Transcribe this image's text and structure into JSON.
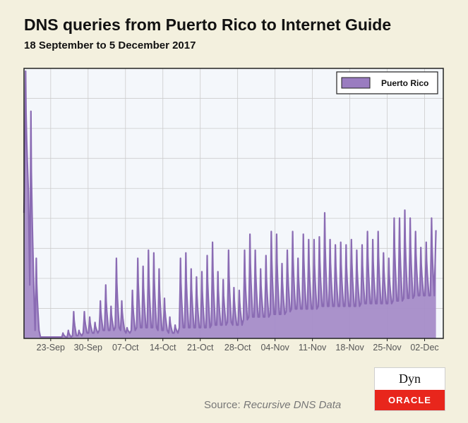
{
  "header": {
    "title": "DNS queries from Puerto Rico to Internet Guide",
    "subtitle": "18 September to 5 December 2017"
  },
  "footer": {
    "source_label": "Source:",
    "source_name": "Recursive DNS Data"
  },
  "logo": {
    "top": "Dyn",
    "bottom": "ORACLE"
  },
  "colors": {
    "series_line": "#8a6bb3",
    "series_fill": "#a58cc8",
    "plot_background": "#f4f7fb",
    "page_background": "#f3f0de",
    "grid": "#cccccc"
  },
  "chart_data": {
    "type": "area",
    "title": "DNS queries from Puerto Rico to Internet Guide",
    "subtitle": "18 September to 5 December 2017",
    "xlabel": "",
    "ylabel": "",
    "x_tick_labels": [
      "23-Sep",
      "30-Sep",
      "07-Oct",
      "14-Oct",
      "21-Oct",
      "28-Oct",
      "04-Nov",
      "11-Nov",
      "18-Nov",
      "25-Nov",
      "02-Dec"
    ],
    "x_tick_day_index": [
      5,
      12,
      19,
      26,
      33,
      40,
      47,
      54,
      61,
      68,
      75
    ],
    "xlim_days": [
      0,
      78.5
    ],
    "ylim_relative": [
      0,
      100
    ],
    "y_tick_labels_shown": false,
    "grid": true,
    "legend_position": "top-right",
    "series": [
      {
        "name": "Puerto Rico",
        "daily_peak_relative": [
          100,
          85,
          30,
          0.5,
          0.5,
          0.5,
          0.5,
          2,
          3,
          10,
          3,
          10,
          8,
          6,
          14,
          20,
          12,
          30,
          14,
          4,
          18,
          30,
          27,
          33,
          32,
          26,
          15,
          8,
          5,
          30,
          32,
          26,
          23,
          25,
          31,
          36,
          25,
          22,
          33,
          19,
          18,
          33,
          39,
          33,
          26,
          31,
          40,
          39,
          28,
          33,
          40,
          30,
          39,
          37,
          37,
          38,
          47,
          37,
          35,
          36,
          35,
          37,
          33,
          35,
          40,
          37,
          40,
          32,
          30,
          45,
          45,
          48,
          45,
          40,
          34,
          36,
          45
        ],
        "daily_trough_relative": [
          55,
          20,
          3,
          0.5,
          0.5,
          0.5,
          0.5,
          0.5,
          0.5,
          1,
          1,
          2,
          2,
          2,
          3,
          3,
          3,
          4,
          3,
          2,
          3,
          4,
          4,
          4,
          4,
          3,
          3,
          2,
          2,
          4,
          4,
          4,
          4,
          4,
          4,
          5,
          5,
          5,
          6,
          5,
          5,
          7,
          8,
          8,
          8,
          8,
          9,
          9,
          9,
          10,
          11,
          11,
          11,
          11,
          11,
          12,
          12,
          12,
          12,
          12,
          12,
          12,
          12,
          13,
          13,
          13,
          13,
          13,
          13,
          14,
          14,
          15,
          15,
          16,
          16,
          16,
          16
        ]
      }
    ]
  }
}
